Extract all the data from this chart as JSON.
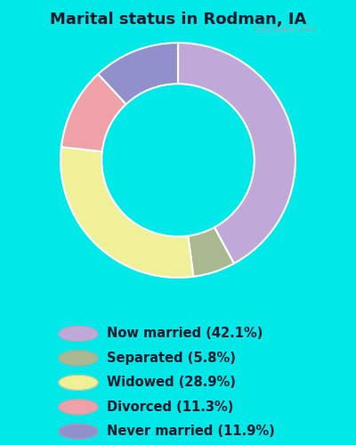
{
  "title": "Marital status in Rodman, IA",
  "slices": [
    42.1,
    5.8,
    28.9,
    11.3,
    11.9
  ],
  "labels": [
    "Now married (42.1%)",
    "Separated (5.8%)",
    "Widowed (28.9%)",
    "Divorced (11.3%)",
    "Never married (11.9%)"
  ],
  "colors": [
    "#c0a8d8",
    "#aab890",
    "#f0f098",
    "#f0a0a8",
    "#9090cc"
  ],
  "bg_cyan": "#00e8e8",
  "bg_chart_color1": "#c8e8d0",
  "bg_chart_color2": "#e8f4e8",
  "title_fontsize": 13,
  "legend_fontsize": 10.5,
  "donut_width": 0.35,
  "watermark": "City-Data.com",
  "start_angle": 90,
  "slice_order": [
    "Now married",
    "Separated",
    "Widowed",
    "Divorced",
    "Never married"
  ]
}
